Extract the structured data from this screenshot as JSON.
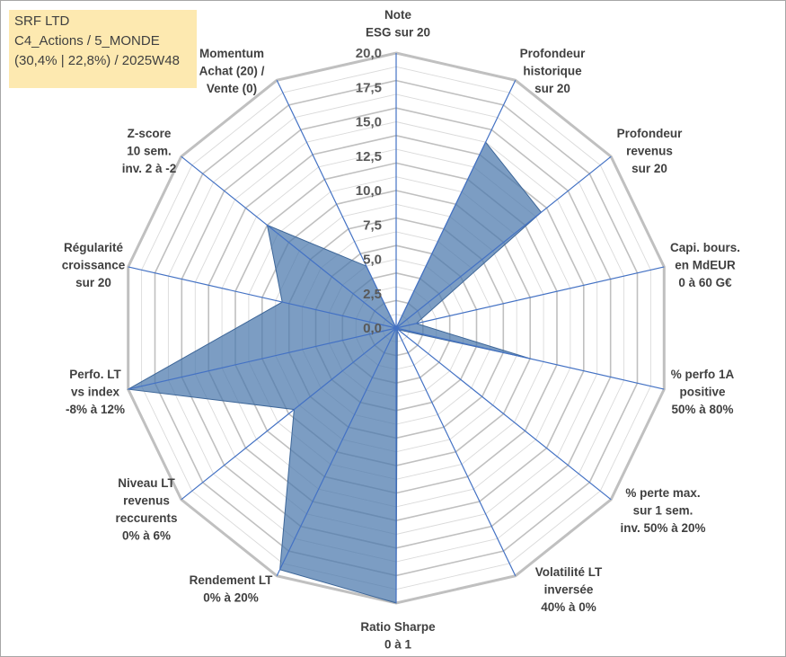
{
  "title_box": {
    "line1": "SRF LTD",
    "line2": "C4_Actions / 5_MONDE",
    "line3": "(30,4% | 22,8%) / 2025W48"
  },
  "chart_data": {
    "type": "radar",
    "rmin": 0,
    "rmax": 20,
    "ticks": [
      "0,0",
      "2,5",
      "5,0",
      "7,5",
      "10,0",
      "12,5",
      "15,0",
      "17,5",
      "20,0"
    ],
    "tick_values": [
      0,
      2.5,
      5,
      7.5,
      10,
      12.5,
      15,
      17.5,
      20
    ],
    "gridlines": "on",
    "legend": "none",
    "categories": [
      [
        "Note",
        "ESG sur 20"
      ],
      [
        "Profondeur",
        "historique",
        "sur 20"
      ],
      [
        "Profondeur",
        "revenus",
        "sur 20"
      ],
      [
        "Capi. bours.",
        "en MdEUR",
        "0 à 60 G€"
      ],
      [
        "% perfo 1A",
        "positive",
        "50% à 80%"
      ],
      [
        "% perte max.",
        "sur 1 sem.",
        "inv. 50% à 20%"
      ],
      [
        "Volatilité LT",
        "inversée",
        "40% à 0%"
      ],
      [
        "Ratio Sharpe",
        "0 à 1"
      ],
      [
        "Rendement LT",
        "0% à 20%"
      ],
      [
        "Niveau LT",
        "revenus",
        "reccurents",
        "0% à 6%"
      ],
      [
        "Perfo. LT",
        "vs index",
        "-8% à 12%"
      ],
      [
        "Régularité",
        "croissance",
        "sur 20"
      ],
      [
        "Z-score",
        "10 sem.",
        "inv. 2 à -2"
      ],
      [
        "Momentum",
        "Achat (20) /",
        "Vente (0)"
      ]
    ],
    "values": [
      0,
      15.0,
      13.5,
      1.5,
      10.0,
      0.2,
      0.2,
      20.0,
      19.5,
      9.5,
      20.0,
      8.5,
      12.0,
      5.0
    ],
    "colors": {
      "fill": "#4a77ac",
      "fill_opacity": 0.72,
      "spoke": "#4472c4",
      "grid_major": "#c0c0c0",
      "grid_minor": "#dadada"
    }
  }
}
